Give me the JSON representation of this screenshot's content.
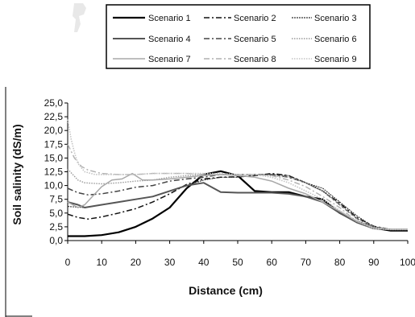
{
  "chart_data": {
    "type": "line",
    "title": "",
    "xlabel": "Distance (cm)",
    "ylabel": "Soil salinity (dS/m)",
    "xlim": [
      0,
      100
    ],
    "ylim": [
      0,
      25
    ],
    "x_ticks": [
      "0",
      "10",
      "20",
      "30",
      "40",
      "50",
      "60",
      "70",
      "80",
      "90",
      "100"
    ],
    "y_ticks": [
      "0,0",
      "2,5",
      "5,0",
      "7,5",
      "10,0",
      "12,5",
      "15,0",
      "17,5",
      "20,0",
      "22,5",
      "25,0"
    ],
    "grid": false,
    "legend_position": "top",
    "series": [
      {
        "name": "Scenario 1",
        "color": "#000000",
        "dash": "",
        "width": 2.2,
        "points": [
          [
            0,
            0.8
          ],
          [
            5,
            0.8
          ],
          [
            10,
            1.0
          ],
          [
            15,
            1.5
          ],
          [
            20,
            2.5
          ],
          [
            25,
            4.0
          ],
          [
            30,
            6.0
          ],
          [
            35,
            9.5
          ],
          [
            40,
            12.0
          ],
          [
            45,
            12.6
          ],
          [
            50,
            11.8
          ],
          [
            55,
            9.0
          ],
          [
            60,
            8.8
          ],
          [
            65,
            8.8
          ],
          [
            70,
            8.0
          ],
          [
            75,
            7.5
          ],
          [
            80,
            5.0
          ],
          [
            85,
            3.5
          ],
          [
            90,
            2.3
          ],
          [
            95,
            1.8
          ],
          [
            100,
            1.8
          ]
        ]
      },
      {
        "name": "Scenario 2",
        "color": "#111111",
        "dash": "7,3,2,3",
        "width": 1.5,
        "points": [
          [
            0,
            4.8
          ],
          [
            3,
            4.2
          ],
          [
            6,
            3.9
          ],
          [
            10,
            4.3
          ],
          [
            15,
            5.0
          ],
          [
            20,
            5.8
          ],
          [
            25,
            7.0
          ],
          [
            30,
            8.5
          ],
          [
            35,
            10.2
          ],
          [
            40,
            11.2
          ],
          [
            45,
            11.5
          ],
          [
            50,
            11.6
          ],
          [
            55,
            11.8
          ],
          [
            60,
            12.2
          ],
          [
            65,
            11.8
          ],
          [
            70,
            10.5
          ],
          [
            75,
            9.0
          ],
          [
            80,
            6.8
          ],
          [
            85,
            4.2
          ],
          [
            90,
            2.6
          ],
          [
            95,
            2.0
          ],
          [
            100,
            2.0
          ]
        ]
      },
      {
        "name": "Scenario 3",
        "color": "#333333",
        "dash": "2,1",
        "width": 1.1,
        "points": [
          [
            0,
            6.2
          ],
          [
            5,
            6.0
          ],
          [
            10,
            6.5
          ],
          [
            15,
            7.0
          ],
          [
            20,
            7.5
          ],
          [
            25,
            8.0
          ],
          [
            30,
            9.0
          ],
          [
            35,
            10.0
          ],
          [
            40,
            11.0
          ],
          [
            45,
            11.5
          ],
          [
            50,
            11.5
          ],
          [
            55,
            11.8
          ],
          [
            60,
            12.0
          ],
          [
            65,
            11.8
          ],
          [
            70,
            10.5
          ],
          [
            75,
            9.5
          ],
          [
            80,
            7.0
          ],
          [
            85,
            4.5
          ],
          [
            90,
            2.5
          ],
          [
            95,
            2.0
          ],
          [
            100,
            2.0
          ]
        ]
      },
      {
        "name": "Scenario 4",
        "color": "#555555",
        "dash": "",
        "width": 2.0,
        "points": [
          [
            0,
            7.0
          ],
          [
            3,
            6.5
          ],
          [
            5,
            6.0
          ],
          [
            8,
            6.3
          ],
          [
            10,
            6.5
          ],
          [
            15,
            7.0
          ],
          [
            20,
            7.5
          ],
          [
            25,
            8.0
          ],
          [
            30,
            9.0
          ],
          [
            35,
            10.0
          ],
          [
            40,
            10.5
          ],
          [
            45,
            8.8
          ],
          [
            50,
            8.7
          ],
          [
            55,
            8.7
          ],
          [
            60,
            8.7
          ],
          [
            65,
            8.5
          ],
          [
            70,
            8.0
          ],
          [
            75,
            7.0
          ],
          [
            80,
            5.0
          ],
          [
            85,
            3.3
          ],
          [
            90,
            2.2
          ],
          [
            95,
            2.0
          ],
          [
            100,
            2.0
          ]
        ]
      },
      {
        "name": "Scenario 5",
        "color": "#444444",
        "dash": "7,3,2,3",
        "width": 1.5,
        "points": [
          [
            0,
            9.5
          ],
          [
            3,
            8.7
          ],
          [
            6,
            8.3
          ],
          [
            10,
            8.5
          ],
          [
            15,
            9.0
          ],
          [
            20,
            9.7
          ],
          [
            25,
            10.0
          ],
          [
            30,
            10.8
          ],
          [
            35,
            11.2
          ],
          [
            40,
            11.5
          ],
          [
            45,
            12.0
          ],
          [
            50,
            12.0
          ],
          [
            55,
            12.0
          ],
          [
            60,
            12.0
          ],
          [
            65,
            11.5
          ],
          [
            70,
            10.5
          ],
          [
            75,
            9.0
          ],
          [
            80,
            6.5
          ],
          [
            85,
            4.0
          ],
          [
            90,
            2.5
          ],
          [
            95,
            2.0
          ],
          [
            100,
            2.0
          ]
        ]
      },
      {
        "name": "Scenario 6",
        "color": "#9a9a9a",
        "dash": "1.5,1.5",
        "width": 1.4,
        "points": [
          [
            0,
            13.0
          ],
          [
            3,
            11.0
          ],
          [
            5,
            10.5
          ],
          [
            10,
            10.3
          ],
          [
            15,
            10.5
          ],
          [
            20,
            10.8
          ],
          [
            25,
            11.0
          ],
          [
            30,
            11.5
          ],
          [
            35,
            11.8
          ],
          [
            40,
            12.0
          ],
          [
            45,
            12.0
          ],
          [
            50,
            12.0
          ],
          [
            55,
            12.0
          ],
          [
            60,
            11.8
          ],
          [
            65,
            11.5
          ],
          [
            70,
            10.5
          ],
          [
            75,
            9.0
          ],
          [
            80,
            6.5
          ],
          [
            85,
            4.0
          ],
          [
            90,
            2.5
          ],
          [
            95,
            2.0
          ],
          [
            100,
            2.0
          ]
        ]
      },
      {
        "name": "Scenario 7",
        "color": "#a8a8a8",
        "dash": "",
        "width": 1.5,
        "points": [
          [
            0,
            7.0
          ],
          [
            3,
            6.0
          ],
          [
            5,
            6.5
          ],
          [
            8,
            8.5
          ],
          [
            10,
            9.8
          ],
          [
            13,
            11.0
          ],
          [
            16,
            11.2
          ],
          [
            19,
            12.2
          ],
          [
            22,
            11.0
          ],
          [
            25,
            11.0
          ],
          [
            30,
            11.2
          ],
          [
            35,
            11.5
          ],
          [
            40,
            11.8
          ],
          [
            45,
            12.0
          ],
          [
            50,
            11.8
          ],
          [
            55,
            11.5
          ],
          [
            60,
            10.8
          ],
          [
            65,
            9.5
          ],
          [
            70,
            8.5
          ],
          [
            75,
            7.0
          ],
          [
            80,
            5.3
          ],
          [
            85,
            3.5
          ],
          [
            90,
            2.3
          ],
          [
            95,
            2.0
          ],
          [
            100,
            2.0
          ]
        ]
      },
      {
        "name": "Scenario 8",
        "color": "#b0b0b0",
        "dash": "7,3,2,3",
        "width": 1.4,
        "points": [
          [
            0,
            17.5
          ],
          [
            2,
            15.0
          ],
          [
            4,
            13.5
          ],
          [
            6,
            12.8
          ],
          [
            10,
            12.2
          ],
          [
            15,
            12.0
          ],
          [
            20,
            12.0
          ],
          [
            25,
            12.2
          ],
          [
            30,
            12.2
          ],
          [
            35,
            12.2
          ],
          [
            40,
            12.0
          ],
          [
            45,
            12.0
          ],
          [
            50,
            12.0
          ],
          [
            55,
            12.0
          ],
          [
            60,
            11.8
          ],
          [
            65,
            11.0
          ],
          [
            70,
            9.8
          ],
          [
            75,
            8.0
          ],
          [
            80,
            6.0
          ],
          [
            85,
            3.5
          ],
          [
            90,
            2.3
          ],
          [
            95,
            2.0
          ],
          [
            100,
            2.0
          ]
        ]
      },
      {
        "name": "Scenario 9",
        "color": "#c4c4c4",
        "dash": "1.5,1.5",
        "width": 1.6,
        "points": [
          [
            0,
            22.0
          ],
          [
            1,
            18.5
          ],
          [
            2,
            16.0
          ],
          [
            3,
            14.0
          ],
          [
            5,
            12.5
          ],
          [
            8,
            12.0
          ],
          [
            10,
            12.0
          ],
          [
            15,
            12.0
          ],
          [
            20,
            12.0
          ],
          [
            25,
            12.2
          ],
          [
            30,
            12.2
          ],
          [
            35,
            12.2
          ],
          [
            40,
            12.2
          ],
          [
            45,
            12.2
          ],
          [
            50,
            12.0
          ],
          [
            55,
            12.0
          ],
          [
            60,
            11.5
          ],
          [
            65,
            10.5
          ],
          [
            70,
            9.0
          ],
          [
            75,
            7.5
          ],
          [
            80,
            5.5
          ],
          [
            85,
            3.5
          ],
          [
            90,
            2.2
          ],
          [
            95,
            2.0
          ],
          [
            100,
            2.0
          ]
        ]
      }
    ]
  }
}
